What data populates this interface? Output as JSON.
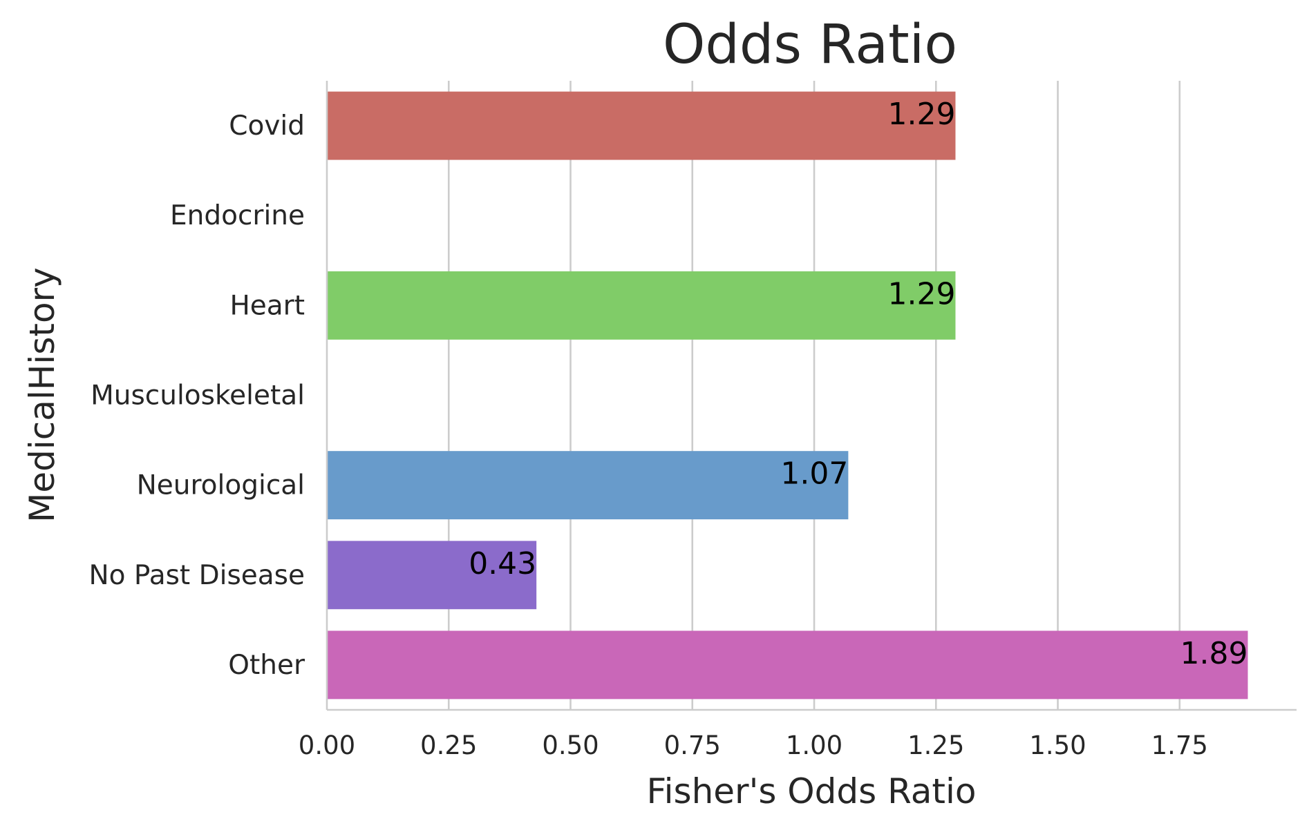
{
  "chart_data": {
    "type": "bar",
    "orientation": "horizontal",
    "title": "Odds Ratio",
    "xlabel": "Fisher's Odds Ratio",
    "ylabel": "MedicalHistory",
    "categories": [
      "Covid",
      "Endocrine",
      "Heart",
      "Musculoskeletal",
      "Neurological",
      "No Past Disease",
      "Other"
    ],
    "values": [
      1.29,
      null,
      1.29,
      null,
      1.07,
      0.43,
      1.89
    ],
    "data_labels": [
      "1.29",
      "",
      "1.29",
      "",
      "1.07",
      "0.43",
      "1.89"
    ],
    "colors": [
      "#c96c65",
      "#d6b35a",
      "#80cc68",
      "#5fc9a0",
      "#689bcb",
      "#8b6bcb",
      "#c967b8"
    ],
    "xlim": [
      0,
      1.99
    ],
    "xticks": [
      "0.00",
      "0.25",
      "0.50",
      "0.75",
      "1.00",
      "1.25",
      "1.50",
      "1.75"
    ],
    "grid": "x",
    "legend": "none"
  }
}
